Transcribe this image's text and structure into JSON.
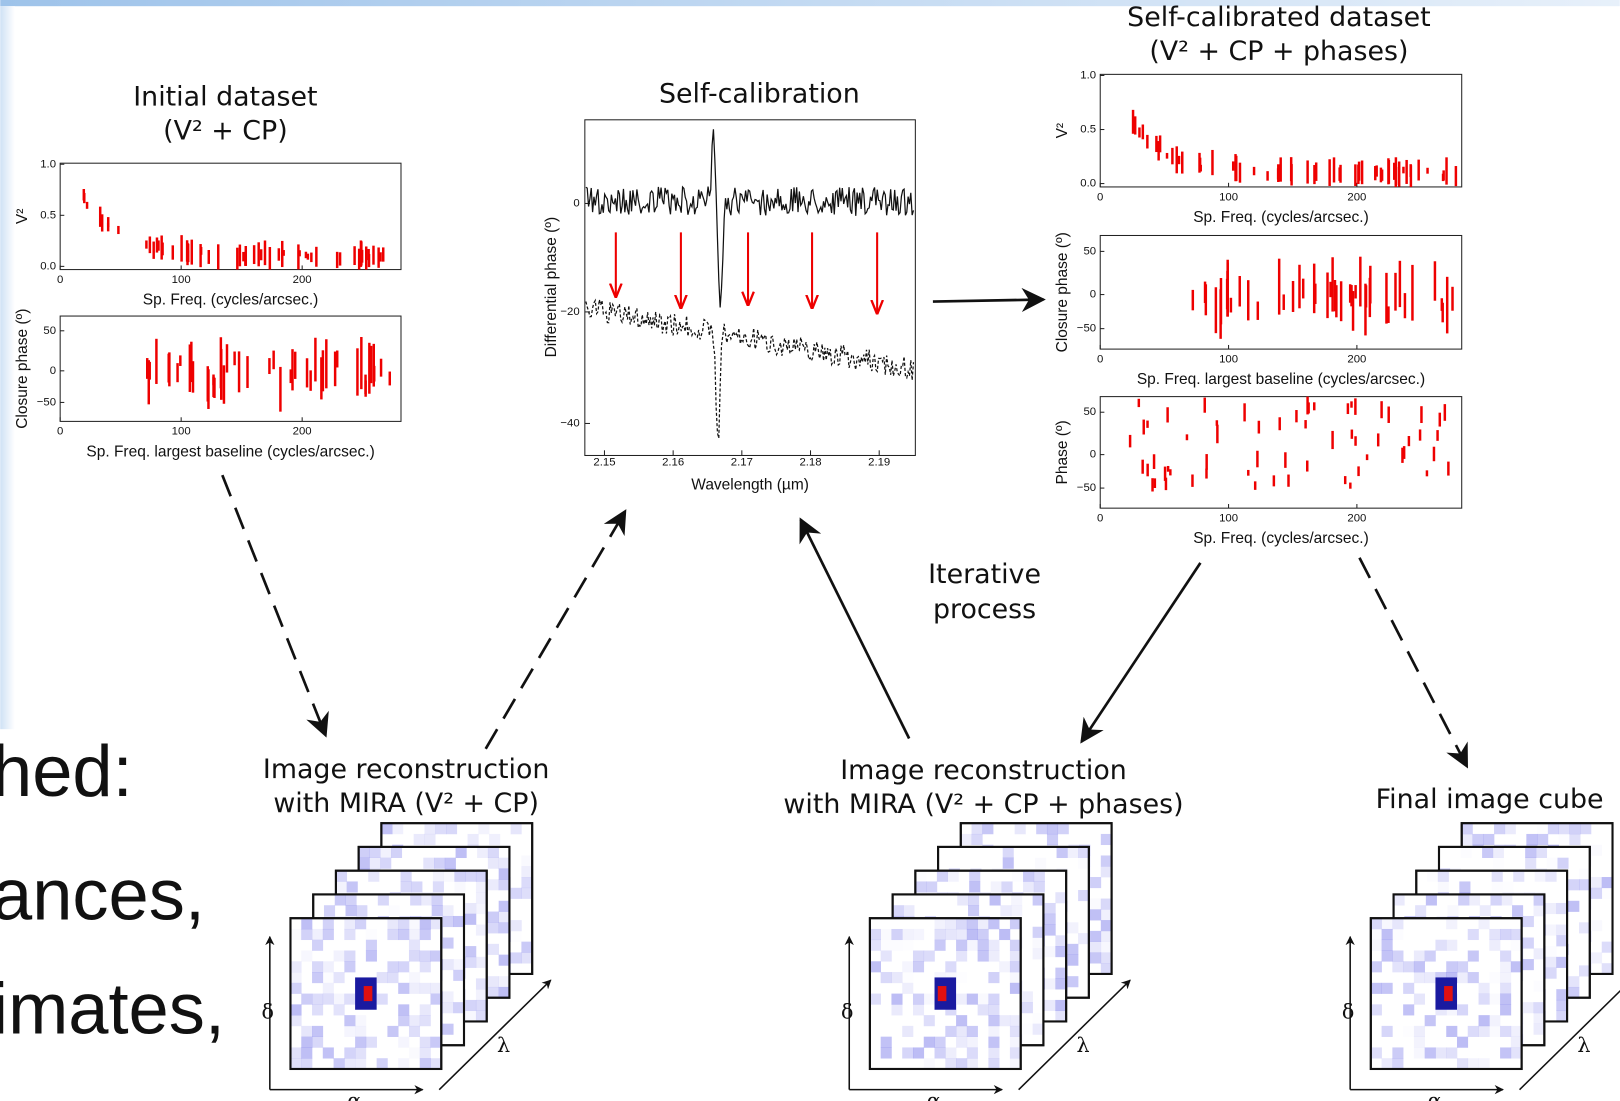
{
  "slide_text": [
    "hed:",
    "ances,",
    "imates,"
  ],
  "initial_dataset": {
    "title": [
      "Initial dataset",
      "(V² + CP)"
    ],
    "v2_plot": {
      "ylabel": "V²",
      "xlabel": "Sp. Freq. (cycles/arcsec.)",
      "yticks": [
        "0.0",
        "0.5",
        "1.0"
      ],
      "xticks": [
        "0",
        "100",
        "200"
      ]
    },
    "cp_plot": {
      "ylabel": "Closure phase (º)",
      "xlabel": "Sp. Freq. largest baseline (cycles/arcsec.)",
      "yticks": [
        "−50",
        "0",
        "50"
      ],
      "xticks": [
        "0",
        "100",
        "200"
      ]
    }
  },
  "self_calibration": {
    "title": "Self-calibration",
    "ylabel": "Differential phase (º)",
    "xlabel": "Wavelength (µm)",
    "yticks": [
      "−40",
      "−20",
      "0"
    ],
    "xticks": [
      "2.15",
      "2.16",
      "2.17",
      "2.18",
      "2.19"
    ]
  },
  "self_calibrated_dataset": {
    "title": [
      "Self-calibrated dataset",
      "(V² + CP + phases)"
    ],
    "v2_plot": {
      "ylabel": "V²",
      "xlabel": "Sp. Freq. (cycles/arcsec.)",
      "yticks": [
        "0.0",
        "0.5",
        "1.0"
      ],
      "xticks": [
        "0",
        "100",
        "200"
      ]
    },
    "cp_plot": {
      "ylabel": "Closure phase (º)",
      "xlabel": "Sp. Freq. largest baseline (cycles/arcsec.)",
      "yticks": [
        "−50",
        "0",
        "50"
      ],
      "xticks": [
        "0",
        "100",
        "200"
      ]
    },
    "phase_plot": {
      "ylabel": "Phase (º)",
      "xlabel": "Sp. Freq. (cycles/arcsec.)",
      "yticks": [
        "−50",
        "0",
        "50"
      ],
      "xticks": [
        "0",
        "100",
        "200"
      ]
    }
  },
  "iterative_process": [
    "Iterative",
    "process"
  ],
  "reconstructions": [
    {
      "title": [
        "Image reconstruction",
        "with MIRA (V² + CP)"
      ]
    },
    {
      "title": [
        "Image reconstruction",
        "with MIRA (V² + CP + phases)"
      ]
    },
    {
      "title": [
        "Final image cube"
      ]
    }
  ],
  "axis_symbols": {
    "delta": "δ",
    "alpha": "α",
    "lambda": "λ"
  }
}
